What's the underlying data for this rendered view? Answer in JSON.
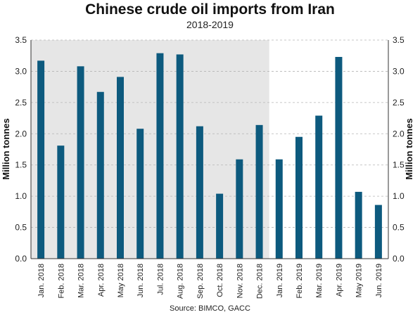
{
  "chart_data": {
    "type": "bar",
    "title": "Chinese crude oil imports from Iran",
    "subtitle": "2018-2019",
    "ylabel": "Million tonnes",
    "ylabel_right": "Million tonnes",
    "source": "Source: BIMCO, GACC",
    "ylim": [
      0,
      3.5
    ],
    "yticks": [
      "0.0",
      "0.5",
      "1.0",
      "1.5",
      "2.0",
      "2.5",
      "3.0",
      "3.5"
    ],
    "grid": true,
    "shaded_period": "Jan. 2018 - Dec. 2018",
    "bar_color": "#0d5a7e",
    "shade_color": "#e6e6e6",
    "categories": [
      "Jan. 2018",
      "Feb. 2018",
      "Mar. 2018",
      "Apr. 2018",
      "May 2018",
      "Jun. 2018",
      "Jul. 2018",
      "Aug. 2018",
      "Sep. 2018",
      "Oct. 2018",
      "Nov. 2018",
      "Dec. 2018",
      "Jan. 2019",
      "Feb. 2019",
      "Mar. 2019",
      "Apr. 2019",
      "May 2019",
      "Jun. 2019"
    ],
    "values": [
      3.17,
      1.81,
      3.08,
      2.67,
      2.91,
      2.08,
      3.29,
      3.27,
      2.12,
      1.04,
      1.59,
      2.14,
      1.59,
      1.95,
      2.29,
      3.23,
      1.07,
      0.86
    ]
  }
}
